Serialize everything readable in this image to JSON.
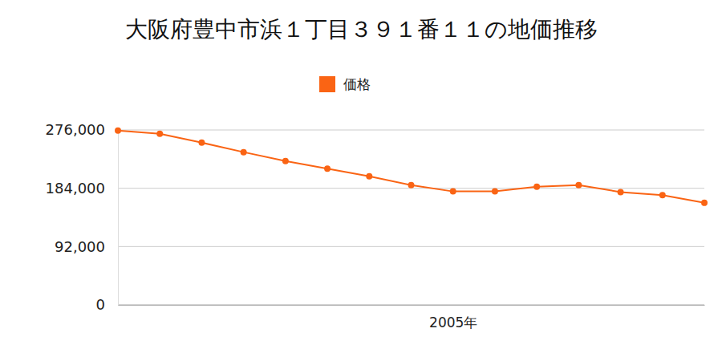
{
  "chart_data": {
    "type": "line",
    "title": "大阪府豊中市浜１丁目３９１番１１の地価推移",
    "categories": [
      null,
      null,
      null,
      null,
      null,
      null,
      null,
      null,
      "2005年",
      null,
      null,
      null,
      null,
      null,
      null
    ],
    "series": [
      {
        "name": "価格",
        "color": "#fa6414",
        "marker": "circle",
        "values": [
          275000,
          270000,
          256000,
          241000,
          227000,
          215000,
          203000,
          189000,
          179000,
          179000,
          186500,
          189000,
          178000,
          173000,
          161000
        ]
      }
    ],
    "ylim": [
      0,
      276000
    ],
    "yticks": [
      0,
      {
        "value": 92000,
        "label": "92,000"
      },
      {
        "value": 184000,
        "label": "184,000"
      },
      {
        "value": 276000,
        "label": "276,000"
      }
    ],
    "grid": true,
    "legend": "top"
  }
}
